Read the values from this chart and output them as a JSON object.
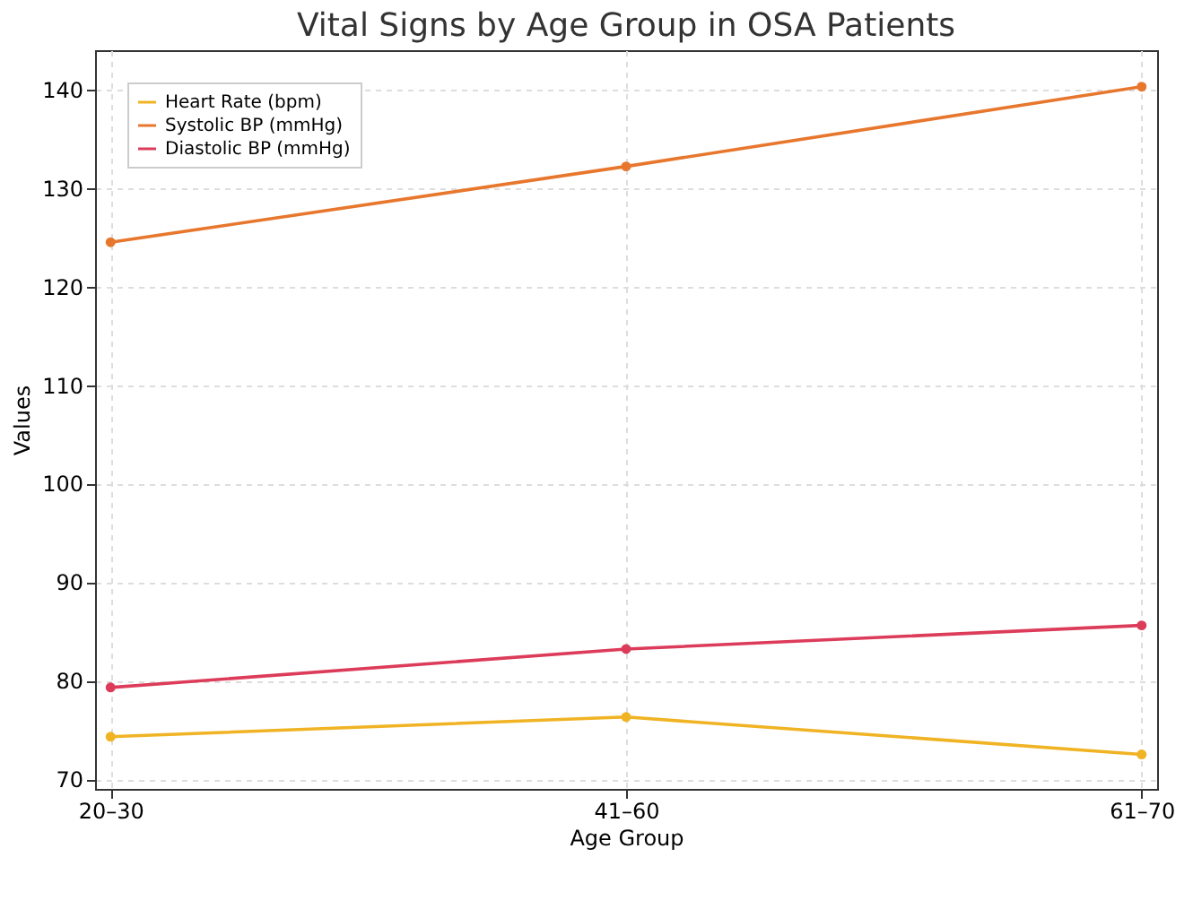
{
  "chart_data": {
    "type": "line",
    "title": "Vital Signs by Age Group in OSA Patients",
    "xlabel": "Age Group",
    "ylabel": "Values",
    "categories": [
      "20–30",
      "41–60",
      "61–70"
    ],
    "series": [
      {
        "name": "Heart Rate (bpm)",
        "color": "#f0b323",
        "values": [
          74.3,
          76.3,
          72.5
        ]
      },
      {
        "name": "Systolic BP (mmHg)",
        "color": "#e8772e",
        "values": [
          124.5,
          132.2,
          140.3
        ]
      },
      {
        "name": "Diastolic BP (mmHg)",
        "color": "#dc3c5a",
        "values": [
          79.3,
          83.2,
          85.6
        ]
      }
    ],
    "ylim": [
      69,
      144
    ],
    "yticks": [
      70,
      80,
      90,
      100,
      110,
      120,
      130,
      140
    ],
    "grid": true,
    "legend": "top left",
    "marker": "circle",
    "line_style": "solid"
  }
}
